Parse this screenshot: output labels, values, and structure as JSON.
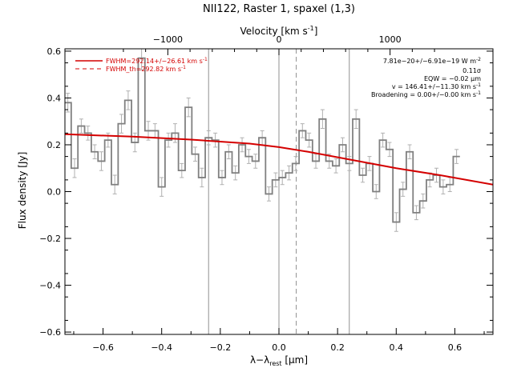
{
  "chart_data": {
    "type": "line",
    "title": "NII122, Raster 1, spaxel (1,3)",
    "xlabel_main": "λ−λ",
    "xlabel_sub": "rest",
    "xlabel_unit": " [μm]",
    "ylabel": "Flux density [Jy]",
    "top_xlabel": "Velocity [km s",
    "top_xlabel_sup": "-1",
    "top_xlabel_end": "]",
    "xlim": [
      -0.73,
      0.73
    ],
    "ylim": [
      -0.61,
      0.61
    ],
    "x_ticks": [
      {
        "value": -0.6,
        "label": "−0.6"
      },
      {
        "value": -0.4,
        "label": "−0.4"
      },
      {
        "value": -0.2,
        "label": "−0.2"
      },
      {
        "value": 0.0,
        "label": "0.0"
      },
      {
        "value": 0.2,
        "label": "0.2"
      },
      {
        "value": 0.4,
        "label": "0.4"
      },
      {
        "value": 0.6,
        "label": "0.6"
      }
    ],
    "y_ticks": [
      {
        "value": -0.6,
        "label": "−0.6"
      },
      {
        "value": -0.4,
        "label": "−0.4"
      },
      {
        "value": -0.2,
        "label": "−0.2"
      },
      {
        "value": 0.0,
        "label": "0.0"
      },
      {
        "value": 0.2,
        "label": "0.2"
      },
      {
        "value": 0.4,
        "label": "0.4"
      },
      {
        "value": 0.6,
        "label": "0.6"
      }
    ],
    "top_ticks": [
      {
        "value": -0.379,
        "label": "−1000"
      },
      {
        "value": 0.0,
        "label": "0"
      },
      {
        "value": 0.379,
        "label": "1000"
      }
    ],
    "vlines_solid": [
      -0.24,
      0.0,
      0.24
    ],
    "vline_dashed": 0.059,
    "spectrum": {
      "bin_width": 0.02286,
      "x_start": -0.72,
      "values": [
        0.38,
        0.1,
        0.28,
        0.25,
        0.17,
        0.13,
        0.22,
        0.03,
        0.29,
        0.39,
        0.21,
        0.57,
        0.26,
        0.26,
        0.02,
        0.22,
        0.25,
        0.09,
        0.36,
        0.16,
        0.06,
        0.23,
        0.22,
        0.06,
        0.17,
        0.08,
        0.2,
        0.15,
        0.13,
        0.23,
        -0.01,
        0.05,
        0.06,
        0.08,
        0.12,
        0.26,
        0.22,
        0.13,
        0.31,
        0.13,
        0.11,
        0.2,
        0.12,
        0.31,
        0.07,
        0.12,
        0.0,
        0.22,
        0.18,
        -0.13,
        0.01,
        0.17,
        -0.09,
        -0.04,
        0.05,
        0.07,
        0.02,
        0.03,
        0.15
      ],
      "errors": [
        0.04,
        0.04,
        0.03,
        0.03,
        0.03,
        0.04,
        0.03,
        0.04,
        0.04,
        0.04,
        0.04,
        0.05,
        0.04,
        0.03,
        0.04,
        0.03,
        0.04,
        0.03,
        0.04,
        0.03,
        0.04,
        0.03,
        0.03,
        0.03,
        0.03,
        0.03,
        0.03,
        0.03,
        0.03,
        0.03,
        0.03,
        0.03,
        0.03,
        0.03,
        0.03,
        0.03,
        0.03,
        0.03,
        0.04,
        0.03,
        0.03,
        0.03,
        0.03,
        0.04,
        0.03,
        0.03,
        0.03,
        0.03,
        0.03,
        0.04,
        0.03,
        0.03,
        0.03,
        0.03,
        0.03,
        0.03,
        0.03,
        0.03,
        0.03
      ]
    },
    "fit": {
      "x": [
        -0.73,
        -0.5,
        -0.3,
        -0.1,
        0.0,
        0.1,
        0.25,
        0.4,
        0.55,
        0.73
      ],
      "y": [
        0.245,
        0.235,
        0.222,
        0.205,
        0.19,
        0.17,
        0.135,
        0.1,
        0.07,
        0.03
      ]
    },
    "legend": {
      "placement": "top-left",
      "entries": [
        {
          "label": "FWHM=292.14+/−26.61 km s",
          "sup": "-1",
          "style": "solid",
          "color": "#d40000"
        },
        {
          "label": "FWHM_th=292.82 km s",
          "sup": "-1",
          "style": "dashed",
          "color": "#d40000"
        }
      ]
    },
    "fit_annotations": [
      {
        "text": "7.81e−20+/−6.91e−19 W m",
        "sup": "-2"
      },
      {
        "text": "0.11σ",
        "sup": ""
      },
      {
        "text": "EQW = −0.02 μm",
        "sup": ""
      },
      {
        "text": "v = 146.41+/−11.30 km s",
        "sup": "-1"
      },
      {
        "text": "Broadening = 0.00+/−0.00 km s",
        "sup": "-1"
      }
    ]
  },
  "colors": {
    "spectrum": "#808080",
    "errorbar": "#b0b0b0",
    "fit": "#d40000",
    "vline": "#909090",
    "axis": "#000000"
  }
}
